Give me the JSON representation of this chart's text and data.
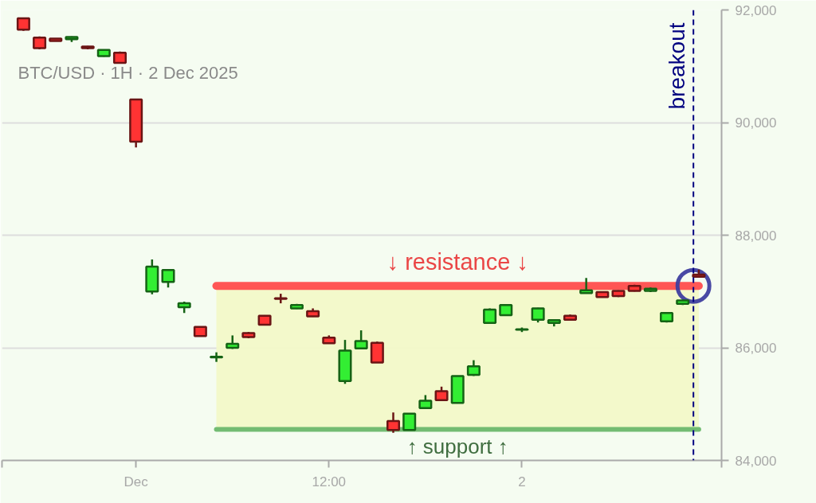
{
  "chart_data": {
    "type": "candlestick",
    "title": "BTC/USD · 1H · 2 Dec 2025",
    "x": [
      "2025-11-30T17:00",
      "2025-11-30T18:00",
      "2025-11-30T19:00",
      "2025-11-30T20:00",
      "2025-11-30T21:00",
      "2025-11-30T22:00",
      "2025-11-30T23:00",
      "2025-12-01T00:00",
      "2025-12-01T01:00",
      "2025-12-01T02:00",
      "2025-12-01T03:00",
      "2025-12-01T04:00",
      "2025-12-01T05:00",
      "2025-12-01T06:00",
      "2025-12-01T07:00",
      "2025-12-01T08:00",
      "2025-12-01T09:00",
      "2025-12-01T10:00",
      "2025-12-01T11:00",
      "2025-12-01T12:00",
      "2025-12-01T13:00",
      "2025-12-01T14:00",
      "2025-12-01T15:00",
      "2025-12-01T16:00",
      "2025-12-01T17:00",
      "2025-12-01T18:00",
      "2025-12-01T19:00",
      "2025-12-01T20:00",
      "2025-12-01T21:00",
      "2025-12-01T22:00",
      "2025-12-01T23:00",
      "2025-12-02T00:00",
      "2025-12-02T01:00",
      "2025-12-02T02:00",
      "2025-12-02T03:00",
      "2025-12-02T04:00",
      "2025-12-02T05:00",
      "2025-12-02T06:00",
      "2025-12-02T07:00",
      "2025-12-02T08:00",
      "2025-12-02T09:00",
      "2025-12-02T10:00",
      "2025-12-02T11:00"
    ],
    "ohlc": [
      [
        91850,
        91860,
        91630,
        91650
      ],
      [
        91510,
        91530,
        91300,
        91320
      ],
      [
        91490,
        91500,
        91440,
        91450
      ],
      [
        91480,
        91530,
        91430,
        91520
      ],
      [
        91350,
        91360,
        91300,
        91320
      ],
      [
        91180,
        91300,
        91170,
        91290
      ],
      [
        91240,
        91260,
        91050,
        91060
      ],
      [
        90410,
        90420,
        89560,
        89660
      ],
      [
        87000,
        87570,
        86950,
        87440
      ],
      [
        87170,
        87400,
        87070,
        87380
      ],
      [
        86720,
        86820,
        86620,
        86790
      ],
      [
        86370,
        86380,
        86200,
        86210
      ],
      [
        85830,
        85920,
        85750,
        85840
      ],
      [
        86000,
        86220,
        85980,
        86070
      ],
      [
        86260,
        86280,
        86170,
        86190
      ],
      [
        86570,
        86580,
        86400,
        86410
      ],
      [
        86880,
        86960,
        86790,
        86870
      ],
      [
        86700,
        86780,
        86690,
        86760
      ],
      [
        86650,
        86700,
        86550,
        86560
      ],
      [
        86180,
        86220,
        86080,
        86080
      ],
      [
        85410,
        86140,
        85360,
        85950
      ],
      [
        85990,
        86310,
        85980,
        86120
      ],
      [
        86090,
        86110,
        85740,
        85740
      ],
      [
        84700,
        84850,
        84490,
        84540
      ],
      [
        84540,
        84830,
        84540,
        84830
      ],
      [
        84930,
        85160,
        84920,
        85060
      ],
      [
        85230,
        85310,
        85070,
        85070
      ],
      [
        85020,
        85500,
        85010,
        85500
      ],
      [
        85520,
        85780,
        85500,
        85670
      ],
      [
        86440,
        86700,
        86440,
        86680
      ],
      [
        86580,
        86770,
        86570,
        86760
      ],
      [
        86320,
        86360,
        86280,
        86330
      ],
      [
        86500,
        86710,
        86450,
        86700
      ],
      [
        86440,
        86500,
        86380,
        86490
      ],
      [
        86570,
        86590,
        86500,
        86500
      ],
      [
        86970,
        87240,
        86970,
        87020
      ],
      [
        86990,
        87000,
        86890,
        86900
      ],
      [
        87010,
        87020,
        86900,
        86920
      ],
      [
        87100,
        87120,
        87000,
        87010
      ],
      [
        87010,
        87070,
        86990,
        87050
      ],
      [
        86470,
        86630,
        86450,
        86620
      ],
      [
        86780,
        86850,
        86760,
        86840
      ],
      [
        87300,
        87390,
        87250,
        87260
      ]
    ],
    "colors": [
      "#ff3333",
      "#ff3333",
      "#ff3333",
      "#33ee33",
      "#ff3333",
      "#33ee33",
      "#ff3333",
      "#ff3333",
      "#33ee33",
      "#33ee33",
      "#33ee33",
      "#ff3333",
      "#33ee33",
      "#33ee33",
      "#ff3333",
      "#ff3333",
      "#ff3333",
      "#33ee33",
      "#ff3333",
      "#ff3333",
      "#33ee33",
      "#33ee33",
      "#ff3333",
      "#ff3333",
      "#33ee33",
      "#33ee33",
      "#ff3333",
      "#33ee33",
      "#33ee33",
      "#33ee33",
      "#33ee33",
      "#33ee33",
      "#33ee33",
      "#33ee33",
      "#ff3333",
      "#33ee33",
      "#ff3333",
      "#ff3333",
      "#ff3333",
      "#33ee33",
      "#33ee33",
      "#33ee33",
      "#ff3333"
    ],
    "series": [
      {
        "type": "line",
        "name": "↓ resistance ↓",
        "color": "#ff4d4d",
        "x": [
          "2025-12-01T05:00",
          "2025-12-02T11:00"
        ],
        "values": [
          87100,
          87100
        ]
      },
      {
        "type": "line",
        "name": "↑ support ↑",
        "color": "#6cb86c",
        "x": [
          "2025-12-01T05:00",
          "2025-12-02T11:00"
        ],
        "values": [
          84550,
          84550
        ]
      },
      {
        "type": "scatter",
        "color": "#3f3f9f",
        "marker": "circle",
        "x": [
          "2025-12-02T10:40"
        ],
        "values": [
          87100
        ]
      }
    ],
    "ref_lines": [
      {
        "axis": "x",
        "value": "2025-12-02T10:40",
        "label": "breakout",
        "color": "#000080",
        "line_style": "dashed"
      }
    ],
    "bands": [
      {
        "axis": "y",
        "from": 84550,
        "to": 87100,
        "color": "#f2f9c8"
      }
    ],
    "xlim": [
      "2025-11-30T15:40",
      "2025-12-02T12:25"
    ],
    "xticks": [
      {
        "value": "2025-11-30T15:40",
        "label": null
      },
      {
        "value": "2025-12-01T00:00",
        "label": "Dec"
      },
      {
        "value": "2025-12-01T12:00",
        "label": "12:00"
      },
      {
        "value": "2025-12-02T00:00",
        "label": "2"
      },
      {
        "value": "2025-12-02T12:25",
        "label": null
      }
    ],
    "ylim": [
      84000,
      92000
    ],
    "yticks": [
      {
        "value": 84000,
        "label": "84,000"
      },
      {
        "value": 86000,
        "label": "86,000"
      },
      {
        "value": 88000,
        "label": "88,000"
      },
      {
        "value": 90000,
        "label": "90,000"
      },
      {
        "value": 92000,
        "label": "92,000"
      }
    ],
    "grid": "y"
  }
}
